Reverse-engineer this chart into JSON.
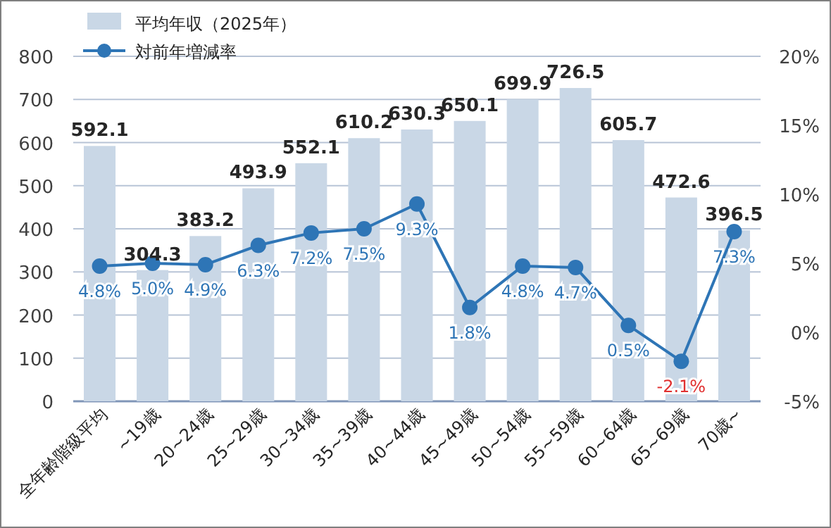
{
  "chart_data": {
    "type": "bar",
    "categories": [
      "全年齢階級平均",
      "~19歳",
      "20~24歳",
      "25~29歳",
      "30~34歳",
      "35~39歳",
      "40~44歳",
      "45~49歳",
      "50~54歳",
      "55~59歳",
      "60~64歳",
      "65~69歳",
      "70歳~"
    ],
    "series": [
      {
        "name": "平均年収（2025年）",
        "color": "#c9d7e6",
        "values": [
          592.1,
          304.3,
          383.2,
          493.9,
          552.1,
          610.2,
          630.3,
          650.1,
          699.9,
          726.5,
          605.7,
          472.6,
          396.5
        ],
        "data_labels": true
      },
      {
        "name": "対前年増減率",
        "type": "line",
        "axis": "y2",
        "color": "#2e75b6",
        "marker": "circle",
        "values": [
          4.8,
          5.0,
          4.9,
          6.3,
          7.2,
          7.5,
          9.3,
          1.8,
          4.8,
          4.7,
          0.5,
          -2.1,
          7.3
        ],
        "value_labels": [
          "4.8%",
          "5.0%",
          "4.9%",
          "6.3%",
          "7.2%",
          "7.5%",
          "9.3%",
          "1.8%",
          "4.8%",
          "4.7%",
          "0.5%",
          "-2.1%",
          "7.3%"
        ]
      }
    ],
    "ylim": [
      0,
      800
    ],
    "yticks": [
      0,
      100,
      200,
      300,
      400,
      500,
      600,
      700,
      800
    ],
    "y2lim": [
      -5,
      20
    ],
    "y2ticks": [
      {
        "value": -5,
        "label": "-5%"
      },
      {
        "value": 0,
        "label": "0%"
      },
      {
        "value": 5,
        "label": "5%"
      },
      {
        "value": 10,
        "label": "10%"
      },
      {
        "value": 15,
        "label": "15%"
      },
      {
        "value": 20,
        "label": "20%"
      }
    ],
    "grid": "y",
    "legend": "top left"
  }
}
